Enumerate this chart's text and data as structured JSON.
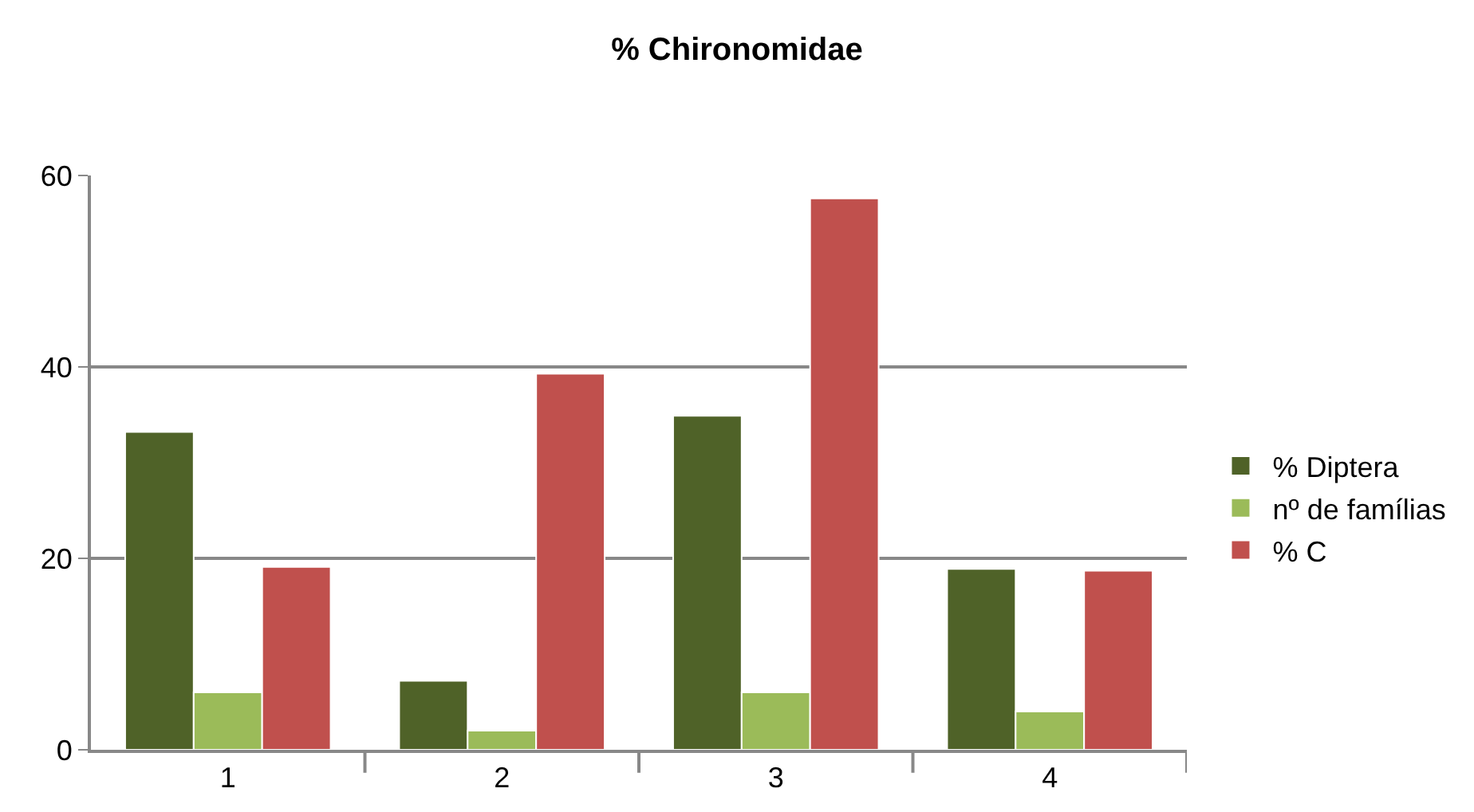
{
  "chart_data": {
    "type": "bar",
    "title": "% Chironomidae",
    "categories": [
      "1",
      "2",
      "3",
      "4"
    ],
    "series": [
      {
        "name": "% Diptera",
        "color": "#4f6228",
        "values": [
          33.2,
          7.2,
          34.9,
          18.9
        ]
      },
      {
        "name": "nº de famílias",
        "color": "#9bbb59",
        "values": [
          6,
          2,
          6,
          4
        ]
      },
      {
        "name": "% C",
        "color": "#c0504d",
        "values": [
          19.1,
          39.3,
          57.6,
          18.7
        ]
      }
    ],
    "ylim": [
      0,
      60
    ],
    "yticks": [
      0,
      20,
      40,
      60
    ],
    "grid": "y",
    "legend": "right"
  }
}
